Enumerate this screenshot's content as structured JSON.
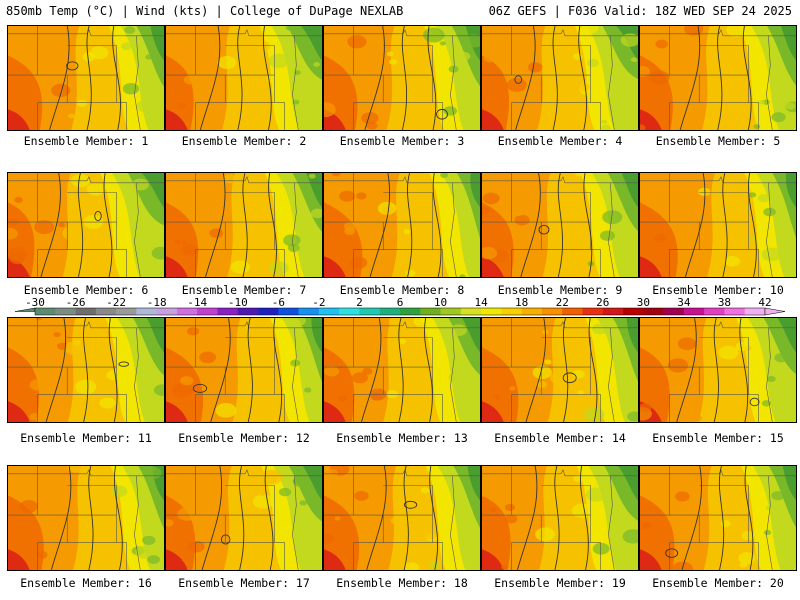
{
  "header": {
    "left": "850mb Temp (°C) | Wind (kts) | College of DuPage NEXLAB",
    "right": "06Z GEFS | F036 Valid: 18Z WED SEP 24 2025"
  },
  "member_label_prefix": "Ensemble Member: ",
  "members": [
    {
      "id": 1,
      "label": "Ensemble Member: 1"
    },
    {
      "id": 2,
      "label": "Ensemble Member: 2"
    },
    {
      "id": 3,
      "label": "Ensemble Member: 3"
    },
    {
      "id": 4,
      "label": "Ensemble Member: 4"
    },
    {
      "id": 5,
      "label": "Ensemble Member: 5"
    },
    {
      "id": 6,
      "label": "Ensemble Member: 6"
    },
    {
      "id": 7,
      "label": "Ensemble Member: 7"
    },
    {
      "id": 8,
      "label": "Ensemble Member: 8"
    },
    {
      "id": 9,
      "label": "Ensemble Member: 9"
    },
    {
      "id": 10,
      "label": "Ensemble Member: 10"
    },
    {
      "id": 11,
      "label": "Ensemble Member: 11"
    },
    {
      "id": 12,
      "label": "Ensemble Member: 12"
    },
    {
      "id": 13,
      "label": "Ensemble Member: 13"
    },
    {
      "id": 14,
      "label": "Ensemble Member: 14"
    },
    {
      "id": 15,
      "label": "Ensemble Member: 15"
    },
    {
      "id": 16,
      "label": "Ensemble Member: 16"
    },
    {
      "id": 17,
      "label": "Ensemble Member: 17"
    },
    {
      "id": 18,
      "label": "Ensemble Member: 18"
    },
    {
      "id": 19,
      "label": "Ensemble Member: 19"
    },
    {
      "id": 20,
      "label": "Ensemble Member: 20"
    }
  ],
  "colorbar": {
    "labels": [
      "-30",
      "-26",
      "-22",
      "-18",
      "-14",
      "-10",
      "-6",
      "-2",
      "2",
      "6",
      "10",
      "14",
      "18",
      "22",
      "26",
      "30",
      "34",
      "38",
      "42"
    ],
    "colors": [
      "#5e8a72",
      "#7c8c82",
      "#6e6e6e",
      "#8a8a8a",
      "#9a9a9a",
      "#b0b8d8",
      "#c8a0e0",
      "#d070e0",
      "#c040d0",
      "#8a20c0",
      "#5018b0",
      "#2020c0",
      "#1050e0",
      "#1890f0",
      "#20c0f0",
      "#30e0e0",
      "#20c8b0",
      "#20b080",
      "#30a040",
      "#70b020",
      "#a0c820",
      "#d8e020",
      "#f0e800",
      "#f8d000",
      "#f8b000",
      "#f89000",
      "#f06000",
      "#e83010",
      "#d01818",
      "#b80000",
      "#a00010",
      "#a00050",
      "#c81090",
      "#e040c0",
      "#f070e0",
      "#f0b0f0"
    ]
  },
  "palette": {
    "green_dark": "#4a9e2e",
    "green": "#79b829",
    "yellow_green": "#c2d91e",
    "yellow": "#f2e600",
    "gold": "#f6c200",
    "orange": "#f59a00",
    "orange_red": "#ee6a00",
    "red": "#de2a12"
  }
}
